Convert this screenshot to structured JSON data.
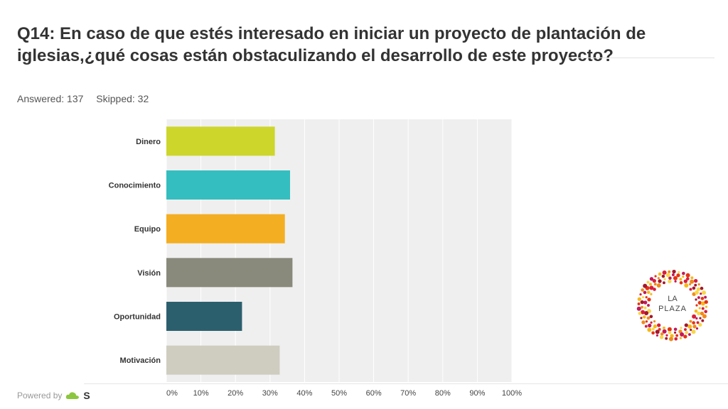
{
  "title": "Q14: En caso de que estés interesado en iniciar un proyecto de plantación de iglesias,¿qué cosas están obstaculizando el desarrollo de este proyecto?",
  "stats": {
    "answered": "Answered: 137",
    "skipped": "Skipped: 32"
  },
  "footer": {
    "powered_by": "Powered by",
    "brand_letter": "S"
  },
  "logo": {
    "line1": "LA",
    "line2": "PLAZA"
  },
  "chart_data": {
    "type": "bar",
    "orientation": "horizontal",
    "categories": [
      "Dinero",
      "Conocimiento",
      "Equipo",
      "Visión",
      "Oportunidad",
      "Motivación"
    ],
    "values": [
      31.4,
      35.8,
      34.3,
      36.5,
      21.9,
      32.8
    ],
    "colors": [
      "#cdd62b",
      "#35bec0",
      "#f4ae21",
      "#898a7b",
      "#2c5f6e",
      "#cfcdc0"
    ],
    "xlim": [
      0,
      100
    ],
    "ticks": [
      "0%",
      "10%",
      "20%",
      "30%",
      "40%",
      "50%",
      "60%",
      "70%",
      "80%",
      "90%",
      "100%"
    ],
    "grid": true
  }
}
